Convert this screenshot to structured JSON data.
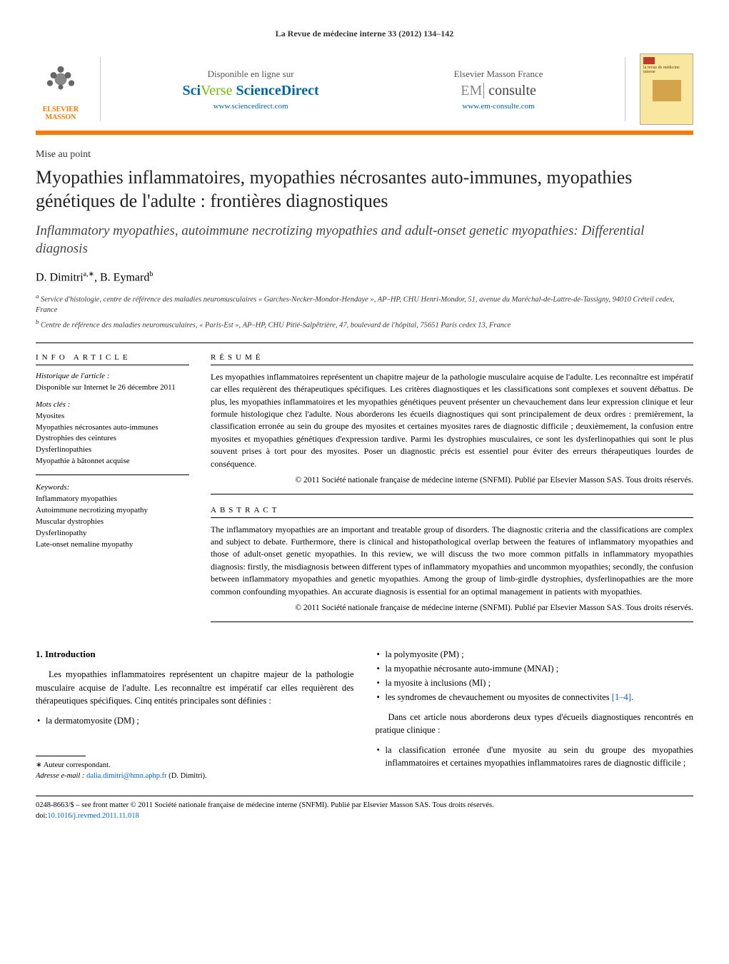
{
  "journal_citation": "La Revue de médecine interne 33 (2012) 134–142",
  "publisher": {
    "name": "ELSEVIER MASSON",
    "logo_color": "#f57c00"
  },
  "online_sources": {
    "left": {
      "top": "Disponible en ligne sur",
      "brand_prefix": "Sci",
      "brand_verse": "Verse",
      "brand_suffix": " ScienceDirect",
      "url": "www.sciencedirect.com"
    },
    "right": {
      "top": "Elsevier Masson France",
      "brand_em": "EM",
      "brand_consulte": "consulte",
      "url": "www.em-consulte.com"
    }
  },
  "cover_title": "la revue de médecine interne",
  "article_type": "Mise au point",
  "title_fr": "Myopathies inflammatoires, myopathies nécrosantes auto-immunes, myopathies génétiques de l'adulte : frontières diagnostiques",
  "title_en": "Inflammatory myopathies, autoimmune necrotizing myopathies and adult-onset genetic myopathies: Differential diagnosis",
  "authors_html": "D. Dimitri",
  "author_sup1": "a,∗",
  "author2": ", B. Eymard",
  "author_sup2": "b",
  "affiliations": {
    "a": "Service d'histologie, centre de référence des maladies neuromusculaires « Garches-Necker-Mondor-Hendaye », AP–HP, CHU Henri-Mondor, 51, avenue du Maréchal-de-Lattre-de-Tassigny, 94010 Créteil cedex, France",
    "b": "Centre de référence des maladies neuromusculaires, « Paris-Est », AP–HP, CHU Pitié-Salpêtrière, 47, boulevard de l'hôpital, 75651 Paris cedex 13, France"
  },
  "info_head": "info article",
  "history_label": "Historique de l'article :",
  "history_text": "Disponible sur Internet le 26 décembre 2011",
  "mots_cles_label": "Mots clés :",
  "mots_cles": [
    "Myosites",
    "Myopathies nécrosantes auto-immunes",
    "Dystrophies des ceintures",
    "Dysferlinopathies",
    "Myopathie à bâtonnet acquise"
  ],
  "keywords_label": "Keywords:",
  "keywords": [
    "Inflammatory myopathies",
    "Autoimmune necrotizing myopathy",
    "Muscular dystrophies",
    "Dysferlinopathy",
    "Late-onset nemaline myopathy"
  ],
  "resume_head": "résumé",
  "resume_body": "Les myopathies inflammatoires représentent un chapitre majeur de la pathologie musculaire acquise de l'adulte. Les reconnaître est impératif car elles requièrent des thérapeutiques spécifiques. Les critères diagnostiques et les classifications sont complexes et souvent débattus. De plus, les myopathies inflammatoires et les myopathies génétiques peuvent présenter un chevauchement dans leur expression clinique et leur formule histologique chez l'adulte. Nous aborderons les écueils diagnostiques qui sont principalement de deux ordres : premièrement, la classification erronée au sein du groupe des myosites et certaines myosites rares de diagnostic difficile ; deuxièmement, la confusion entre myosites et myopathies génétiques d'expression tardive. Parmi les dystrophies musculaires, ce sont les dysferlinopathies qui sont le plus souvent prises à tort pour des myosites. Poser un diagnostic précis est essentiel pour éviter des erreurs thérapeutiques lourdes de conséquence.",
  "copyright_fr": "© 2011 Société nationale française de médecine interne (SNFMI). Publié par Elsevier Masson SAS. Tous droits réservés.",
  "abstract_head": "abstract",
  "abstract_body": "The inflammatory myopathies are an important and treatable group of disorders. The diagnostic criteria and the classifications are complex and subject to debate. Furthermore, there is clinical and histopathological overlap between the features of inflammatory myopathies and those of adult-onset genetic myopathies. In this review, we will discuss the two more common pitfalls in inflammatory myopathies diagnosis: firstly, the misdiagnosis between different types of inflammatory myopathies and uncommon myopathies; secondly, the confusion between inflammatory myopathies and genetic myopathies. Among the group of limb-girdle dystrophies, dysferlinopathies are the more common confounding myopathies. An accurate diagnosis is essential for an optimal management in patients with myopathies.",
  "copyright_en": "© 2011 Société nationale française de médecine interne (SNFMI). Publié par Elsevier Masson SAS. Tous droits réservés.",
  "intro_head": "1. Introduction",
  "intro_p1": "Les myopathies inflammatoires représentent un chapitre majeur de la pathologie musculaire acquise de l'adulte. Les reconnaître est impératif car elles requièrent des thérapeutiques spécifiques. Cinq entités principales sont définies :",
  "intro_list1": [
    "la dermatomyosite (DM) ;"
  ],
  "intro_list2": [
    "la polymyosite (PM) ;",
    "la myopathie nécrosante auto-immune (MNAI) ;",
    "la myosite à inclusions (MI) ;"
  ],
  "intro_list2_last": "les syndromes de chevauchement ou myosites de connectivites ",
  "intro_list2_ref": "[1–4]",
  "intro_list2_dot": ".",
  "intro_p2": "Dans cet article nous aborderons deux types d'écueils diagnostiques rencontrés en pratique clinique :",
  "intro_list3": [
    "la classification erronée d'une myosite au sein du groupe des myopathies inflammatoires et certaines myopathies inflammatoires rares de diagnostic difficile ;"
  ],
  "corresp_label": "∗ Auteur correspondant.",
  "corresp_email_label": "Adresse e-mail :",
  "corresp_email": "dalia.dimitri@hmn.aphp.fr",
  "corresp_name": " (D. Dimitri).",
  "footer_line1": "0248-8663/$ – see front matter © 2011 Société nationale française de médecine interne (SNFMI). Publié par Elsevier Masson SAS. Tous droits réservés.",
  "footer_doi_label": "doi:",
  "footer_doi": "10.1016/j.revmed.2011.11.018"
}
